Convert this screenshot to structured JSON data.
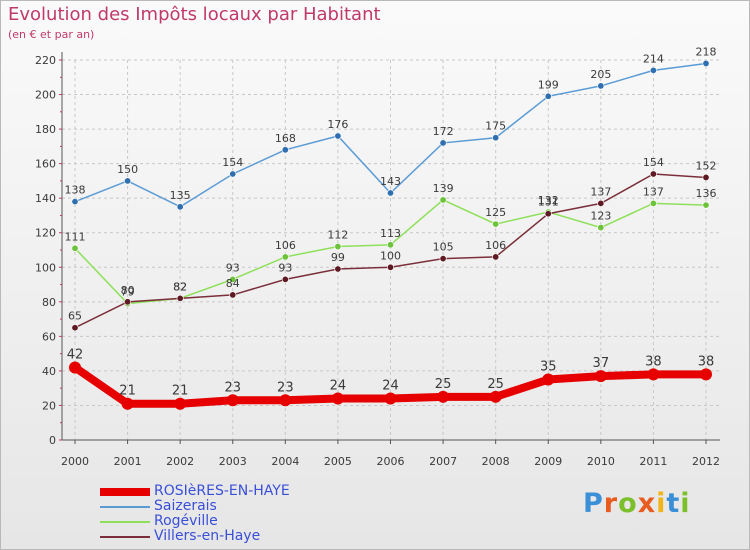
{
  "title": "Evolution des Impôts locaux par Habitant",
  "subtitle": "(en € et par an)",
  "logo": {
    "text": "Proxiti",
    "colors": [
      "#3a8fd6",
      "#e85c1f",
      "#7bbf2a",
      "#e85c1f",
      "#f1b51c",
      "#3a8fd6",
      "#7bbf2a"
    ]
  },
  "chart_data": {
    "type": "line",
    "x": [
      "2000",
      "2001",
      "2002",
      "2003",
      "2004",
      "2005",
      "2006",
      "2007",
      "2008",
      "2009",
      "2010",
      "2011",
      "2012"
    ],
    "ylim": [
      0,
      220
    ],
    "yticks": [
      0,
      20,
      40,
      60,
      80,
      100,
      120,
      140,
      160,
      180,
      200,
      220
    ],
    "grid": true,
    "legend_position": "bottom-left",
    "series": [
      {
        "name": "ROSIèRES-EN-HAYE",
        "color": "#e60000",
        "values": [
          42,
          21,
          21,
          23,
          23,
          24,
          24,
          25,
          25,
          35,
          37,
          38,
          38
        ],
        "highlight": true
      },
      {
        "name": "Saizerais",
        "color": "#5b9bd5",
        "marker": "#2f6fb0",
        "values": [
          138,
          150,
          135,
          154,
          168,
          176,
          143,
          172,
          175,
          199,
          205,
          214,
          218
        ]
      },
      {
        "name": "Rogéville",
        "color": "#8ee05a",
        "marker": "#6cc23a",
        "values": [
          111,
          79,
          82,
          93,
          106,
          112,
          113,
          139,
          125,
          132,
          123,
          137,
          136
        ]
      },
      {
        "name": "Villers-en-Haye",
        "color": "#7a2f3a",
        "marker": "#5e1a22",
        "values": [
          65,
          80,
          82,
          84,
          93,
          99,
          100,
          105,
          106,
          131,
          137,
          154,
          152
        ]
      }
    ]
  }
}
